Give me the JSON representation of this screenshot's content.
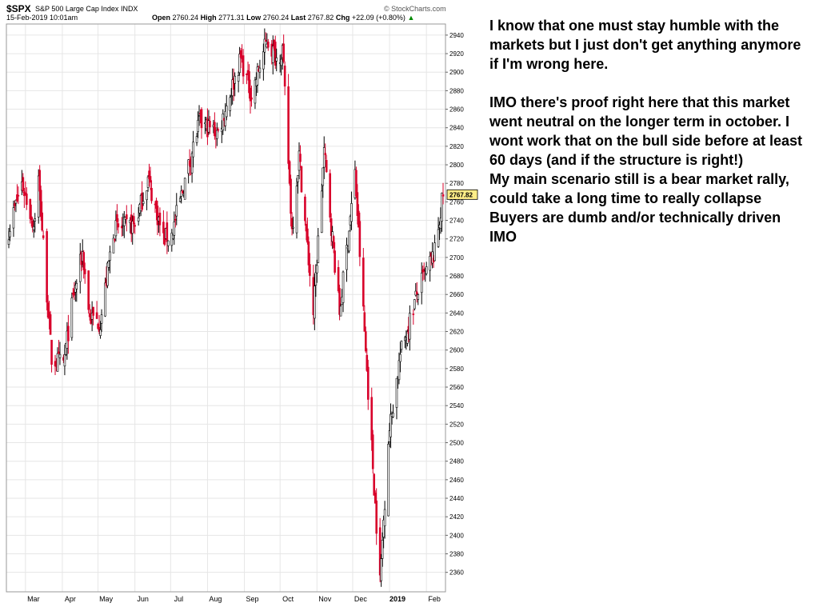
{
  "header": {
    "symbol": "$SPX",
    "name": "S&P 500 Large Cap Index",
    "exchange": "INDX",
    "datetime": "15-Feb-2019 10:01am",
    "watermark": "© StockCharts.com",
    "open_label": "Open",
    "open": "2760.24",
    "high_label": "High",
    "high": "2771.31",
    "low_label": "Low",
    "low": "2760.24",
    "last_label": "Last",
    "last": "2767.82",
    "chg_label": "Chg",
    "chg": "+22.09 (+0.80%)",
    "chg_arrow": "▲"
  },
  "colors": {
    "up": "#000000",
    "down": "#d8002a",
    "grid": "#e6e6e6",
    "last_price_box": "#ffee88"
  },
  "comment": {
    "paragraph1": "I know that one must stay humble with the markets but I just don't get anything anymore if I'm wrong here.",
    "paragraph2_lines": [
      "IMO there's proof right here that this market went neutral on the longer term in october. I wont work that on the bull side before at least 60 days (and if the structure is right!)",
      "My main scenario still is a bear market rally, could take a long time to really collapse",
      "Buyers are dumb and/or technically driven IMO"
    ]
  },
  "chart_data": {
    "type": "candlestick",
    "title": "$SPX S&P 500 Large Cap Index INDX",
    "ylim": [
      2340,
      2950
    ],
    "y_ticks": [
      2360,
      2380,
      2400,
      2420,
      2440,
      2460,
      2480,
      2500,
      2520,
      2540,
      2560,
      2580,
      2600,
      2620,
      2640,
      2660,
      2680,
      2700,
      2720,
      2740,
      2760,
      2780,
      2800,
      2820,
      2840,
      2860,
      2880,
      2900,
      2920,
      2940
    ],
    "x_ticks": [
      "Mar",
      "Apr",
      "May",
      "Jun",
      "Jul",
      "Aug",
      "Sep",
      "Oct",
      "Nov",
      "Dec",
      "2019",
      "Feb"
    ],
    "last_price_label": "2767.82",
    "grid": true,
    "close_path_keypoints": [
      [
        "2018-02-15",
        2730
      ],
      [
        "2018-02-26",
        2780
      ],
      [
        "2018-03-08",
        2735
      ],
      [
        "2018-03-12",
        2785
      ],
      [
        "2018-03-23",
        2590
      ],
      [
        "2018-04-02",
        2585
      ],
      [
        "2018-04-10",
        2655
      ],
      [
        "2018-04-18",
        2705
      ],
      [
        "2018-04-24",
        2635
      ],
      [
        "2018-05-03",
        2630
      ],
      [
        "2018-05-14",
        2730
      ],
      [
        "2018-06-01",
        2735
      ],
      [
        "2018-06-12",
        2785
      ],
      [
        "2018-06-25",
        2720
      ],
      [
        "2018-07-02",
        2725
      ],
      [
        "2018-07-25",
        2845
      ],
      [
        "2018-08-10",
        2835
      ],
      [
        "2018-08-29",
        2915
      ],
      [
        "2018-09-07",
        2875
      ],
      [
        "2018-09-20",
        2935
      ],
      [
        "2018-09-28",
        2915
      ],
      [
        "2018-10-03",
        2925
      ],
      [
        "2018-10-11",
        2730
      ],
      [
        "2018-10-17",
        2810
      ],
      [
        "2018-10-29",
        2640
      ],
      [
        "2018-11-07",
        2815
      ],
      [
        "2018-11-20",
        2640
      ],
      [
        "2018-12-03",
        2790
      ],
      [
        "2018-12-10",
        2640
      ],
      [
        "2018-12-24",
        2350
      ],
      [
        "2018-12-31",
        2505
      ],
      [
        "2019-01-10",
        2595
      ],
      [
        "2019-01-25",
        2665
      ],
      [
        "2019-02-08",
        2705
      ],
      [
        "2019-02-15",
        2767.82
      ]
    ]
  }
}
